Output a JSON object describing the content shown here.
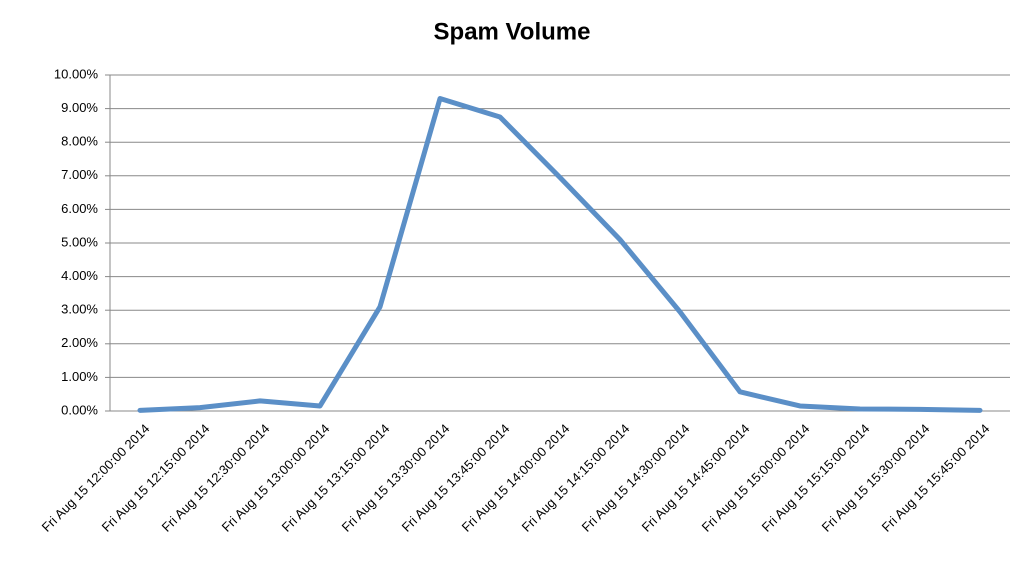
{
  "chart_data": {
    "type": "line",
    "title": "Spam Volume",
    "categories": [
      "Fri Aug 15 12:00:00 2014",
      "Fri Aug 15 12:15:00 2014",
      "Fri Aug 15 12:30:00 2014",
      "Fri Aug 15 13:00:00 2014",
      "Fri Aug 15 13:15:00 2014",
      "Fri Aug 15 13:30:00 2014",
      "Fri Aug 15 13:45:00 2014",
      "Fri Aug 15 14:00:00 2014",
      "Fri Aug 15 14:15:00 2014",
      "Fri Aug 15 14:30:00 2014",
      "Fri Aug 15 14:45:00 2014",
      "Fri Aug 15 15:00:00 2014",
      "Fri Aug 15 15:15:00 2014",
      "Fri Aug 15 15:30:00 2014",
      "Fri Aug 15 15:45:00 2014"
    ],
    "values": [
      0.02,
      0.1,
      0.3,
      0.15,
      3.1,
      9.3,
      8.75,
      6.95,
      5.1,
      2.95,
      0.57,
      0.15,
      0.06,
      0.05,
      0.02
    ],
    "color": "#5b8fc7",
    "ylim": [
      0,
      10
    ],
    "yticks": [
      {
        "value": 0,
        "label": "0.00%"
      },
      {
        "value": 1,
        "label": "1.00%"
      },
      {
        "value": 2,
        "label": "2.00%"
      },
      {
        "value": 3,
        "label": "3.00%"
      },
      {
        "value": 4,
        "label": "4.00%"
      },
      {
        "value": 5,
        "label": "5.00%"
      },
      {
        "value": 6,
        "label": "6.00%"
      },
      {
        "value": 7,
        "label": "7.00%"
      },
      {
        "value": 8,
        "label": "8.00%"
      },
      {
        "value": 9,
        "label": "9.00%"
      },
      {
        "value": 10,
        "label": "10.00%"
      }
    ],
    "grid": true
  }
}
